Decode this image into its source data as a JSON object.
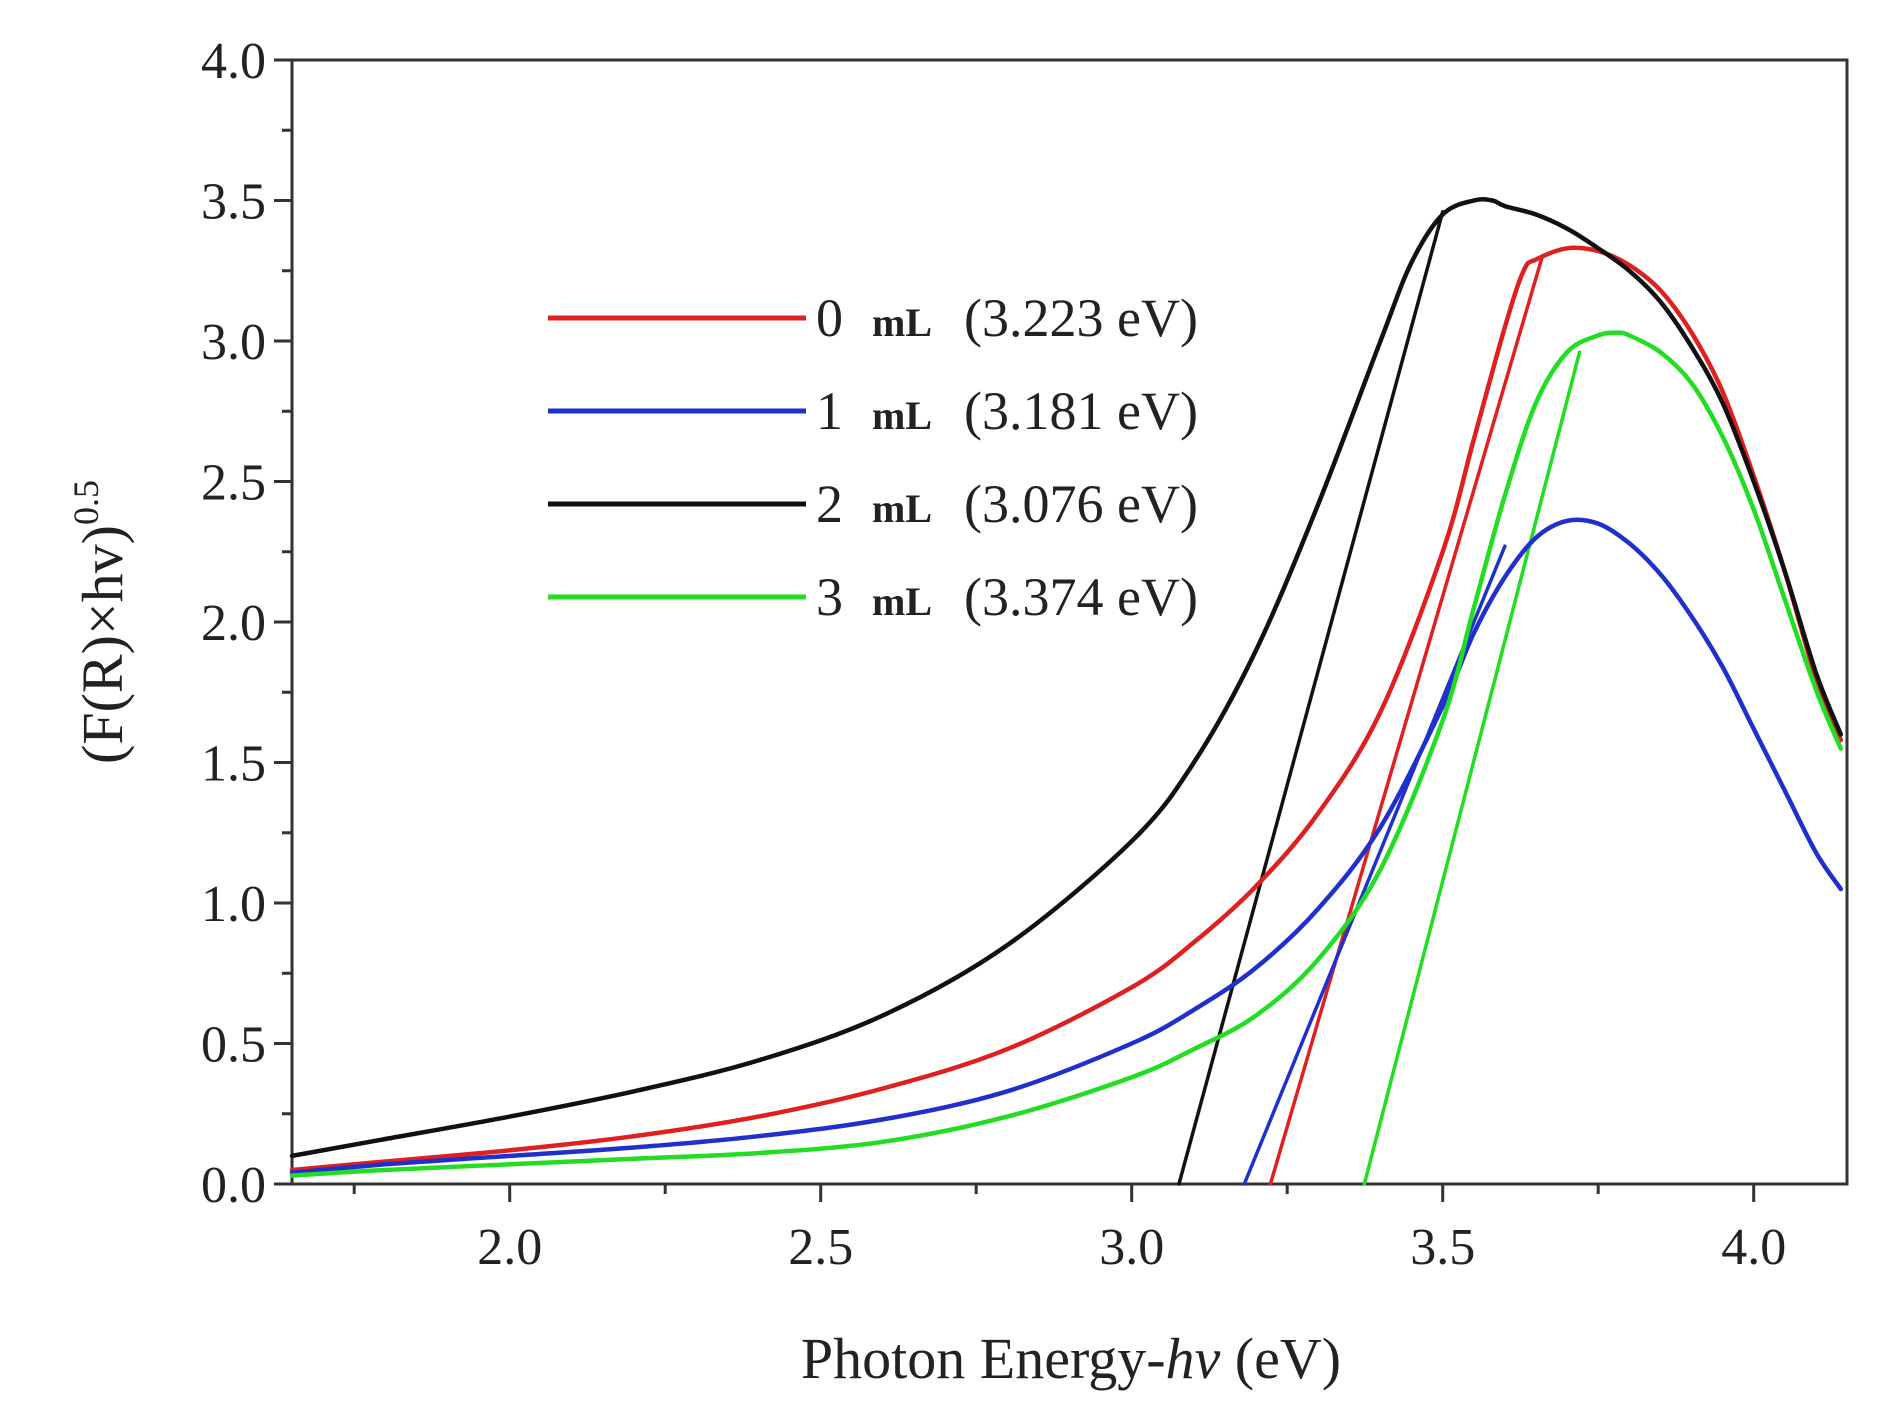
{
  "chart_data": {
    "type": "line",
    "title": "",
    "xlabel": "Photon Energy-hv (eV)",
    "xlabel_parts": {
      "before": "Photon Energy-",
      "italic": "hv",
      "after": " (eV)"
    },
    "ylabel": "(F(R)×hv)^0.5",
    "ylabel_parts": {
      "base": "(F(R)×hv)",
      "exponent": "0.5"
    },
    "xlim": [
      1.65,
      4.15
    ],
    "ylim": [
      0.0,
      4.0
    ],
    "xticks": [
      2.0,
      2.5,
      3.0,
      3.5,
      4.0
    ],
    "xtick_labels": [
      "2.0",
      "2.5",
      "3.0",
      "3.5",
      "4.0"
    ],
    "yticks": [
      0.0,
      0.5,
      1.0,
      1.5,
      2.0,
      2.5,
      3.0,
      3.5,
      4.0
    ],
    "ytick_labels": [
      "0.0",
      "0.5",
      "1.0",
      "1.5",
      "2.0",
      "2.5",
      "3.0",
      "3.5",
      "4.0"
    ],
    "legend_position": "upper-center",
    "series": [
      {
        "name": "0 mL (3.223 eV)",
        "sample": "0 mL",
        "band_gap": "(3.223 eV)",
        "color": "#e02020",
        "x": [
          1.65,
          1.8,
          2.0,
          2.2,
          2.4,
          2.6,
          2.8,
          3.0,
          3.1,
          3.2,
          3.3,
          3.4,
          3.5,
          3.55,
          3.6,
          3.63,
          3.65,
          3.7,
          3.75,
          3.8,
          3.85,
          3.9,
          3.95,
          4.0,
          4.05,
          4.1,
          4.14
        ],
        "y": [
          0.05,
          0.08,
          0.12,
          0.17,
          0.24,
          0.34,
          0.48,
          0.7,
          0.86,
          1.06,
          1.32,
          1.68,
          2.25,
          2.65,
          3.05,
          3.25,
          3.29,
          3.33,
          3.32,
          3.27,
          3.18,
          3.03,
          2.82,
          2.52,
          2.18,
          1.8,
          1.58
        ],
        "fit_x": [
          3.223,
          3.66
        ],
        "fit_y": [
          0.0,
          3.3
        ]
      },
      {
        "name": "1 mL (3.181 eV)",
        "sample": "1 mL",
        "band_gap": "(3.181 eV)",
        "color": "#2030cc",
        "x": [
          1.65,
          1.8,
          2.0,
          2.2,
          2.4,
          2.6,
          2.8,
          3.0,
          3.1,
          3.2,
          3.3,
          3.4,
          3.5,
          3.55,
          3.6,
          3.65,
          3.7,
          3.75,
          3.8,
          3.85,
          3.9,
          3.95,
          4.0,
          4.05,
          4.1,
          4.14
        ],
        "y": [
          0.04,
          0.07,
          0.1,
          0.13,
          0.17,
          0.23,
          0.33,
          0.5,
          0.62,
          0.77,
          0.98,
          1.27,
          1.7,
          1.96,
          2.16,
          2.3,
          2.36,
          2.35,
          2.28,
          2.17,
          2.02,
          1.84,
          1.62,
          1.4,
          1.18,
          1.05
        ],
        "fit_x": [
          3.181,
          3.6
        ],
        "fit_y": [
          0.0,
          2.27
        ]
      },
      {
        "name": "2 mL (3.076 eV)",
        "sample": "2 mL",
        "band_gap": "(3.076 eV)",
        "color": "#111111",
        "x": [
          1.65,
          1.8,
          2.0,
          2.2,
          2.4,
          2.6,
          2.8,
          3.0,
          3.1,
          3.2,
          3.3,
          3.4,
          3.45,
          3.5,
          3.55,
          3.58,
          3.6,
          3.65,
          3.7,
          3.75,
          3.8,
          3.85,
          3.9,
          3.95,
          4.0,
          4.05,
          4.1,
          4.14
        ],
        "y": [
          0.1,
          0.16,
          0.24,
          0.33,
          0.44,
          0.6,
          0.85,
          1.22,
          1.5,
          1.9,
          2.42,
          3.0,
          3.28,
          3.45,
          3.5,
          3.5,
          3.48,
          3.45,
          3.4,
          3.33,
          3.25,
          3.14,
          2.98,
          2.78,
          2.5,
          2.18,
          1.82,
          1.6
        ],
        "fit_x": [
          3.076,
          3.5
        ],
        "fit_y": [
          0.0,
          3.46
        ]
      },
      {
        "name": "3 mL (3.374 eV)",
        "sample": "3 mL",
        "band_gap": "(3.374 eV)",
        "color": "#22dd22",
        "x": [
          1.65,
          1.8,
          2.0,
          2.2,
          2.4,
          2.6,
          2.8,
          3.0,
          3.1,
          3.2,
          3.3,
          3.4,
          3.5,
          3.55,
          3.6,
          3.65,
          3.7,
          3.75,
          3.78,
          3.8,
          3.85,
          3.9,
          3.95,
          4.0,
          4.05,
          4.1,
          4.14
        ],
        "y": [
          0.03,
          0.05,
          0.07,
          0.09,
          0.11,
          0.15,
          0.24,
          0.38,
          0.48,
          0.6,
          0.8,
          1.12,
          1.65,
          2.05,
          2.45,
          2.78,
          2.96,
          3.02,
          3.03,
          3.02,
          2.96,
          2.85,
          2.66,
          2.4,
          2.08,
          1.76,
          1.55
        ],
        "fit_x": [
          3.374,
          3.72
        ],
        "fit_y": [
          0.0,
          2.96
        ]
      }
    ]
  }
}
